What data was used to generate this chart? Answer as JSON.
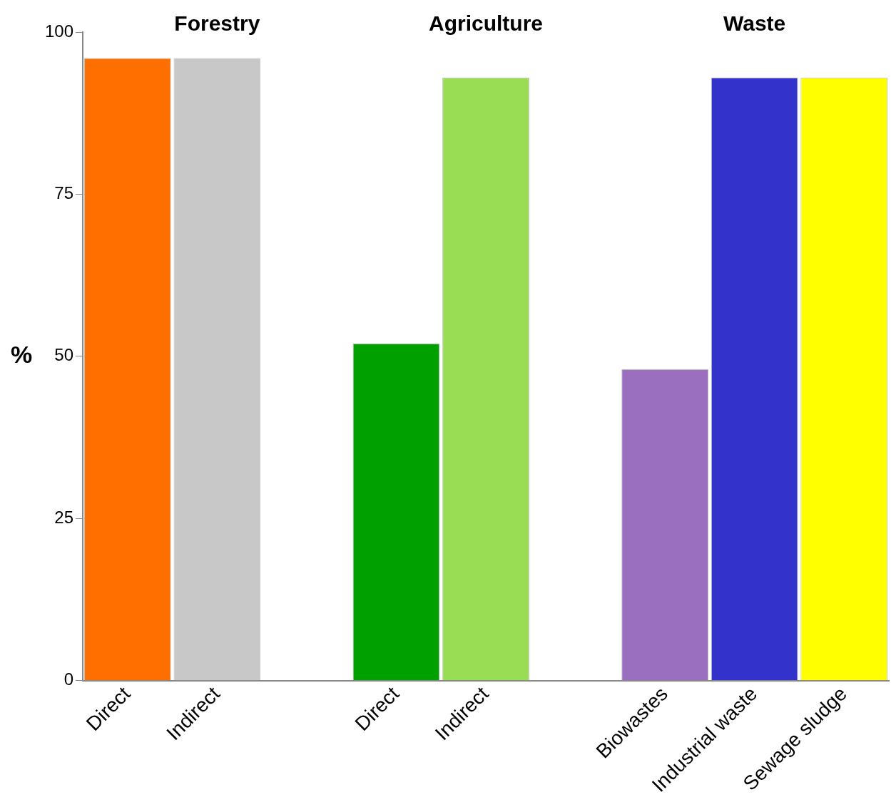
{
  "chart_data": {
    "type": "bar",
    "ylabel": "%",
    "categories": [
      "Direct",
      "Indirect",
      null,
      "Direct",
      "Indirect",
      null,
      "Biowastes",
      "Industrial waste",
      "Sewage sludge"
    ],
    "values": [
      96,
      96,
      null,
      52,
      93,
      null,
      48,
      93,
      93
    ],
    "colors": [
      "#ff6f00",
      "#c8c8c8",
      "#ffffff",
      "#00a000",
      "#99dd55",
      "#ffffff",
      "#9b6fc0",
      "#3333cc",
      "#ffff00"
    ],
    "ylim": [
      0,
      100
    ],
    "yticks": [
      0,
      25,
      50,
      75,
      100
    ],
    "grid": false,
    "legend": false,
    "annotations": [
      "Forestry",
      "Agriculture",
      "Waste"
    ]
  }
}
